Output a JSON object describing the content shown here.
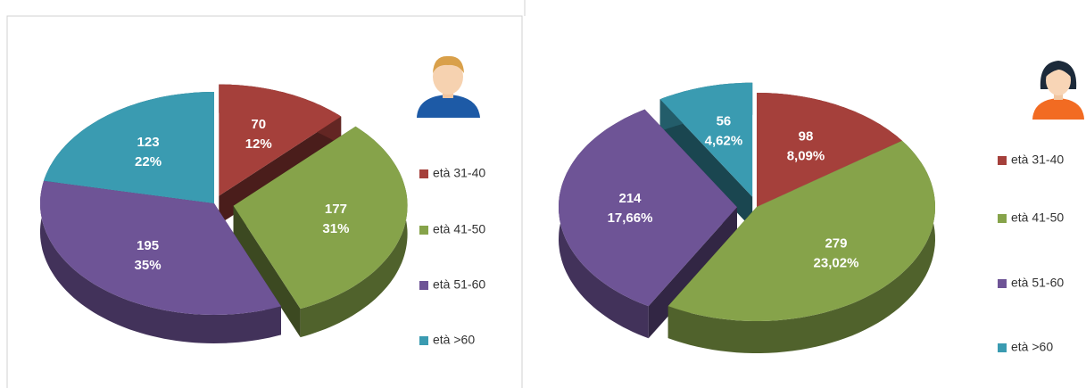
{
  "chart_data": [
    {
      "type": "pie3d",
      "categories": [
        "età 31-40",
        "età 41-50",
        "età 51-60",
        "età >60"
      ],
      "values": [
        70,
        177,
        195,
        123
      ],
      "percentage_labels": [
        "12%",
        "31%",
        "35%",
        "22%"
      ],
      "colors": [
        "#a5403b",
        "#86a34a",
        "#6e5496",
        "#3a9bb1"
      ],
      "legend": "right"
    },
    {
      "type": "pie3d",
      "categories": [
        "età 31-40",
        "età 41-50",
        "età 51-60",
        "età >60"
      ],
      "values": [
        98,
        279,
        214,
        56
      ],
      "percentage_labels": [
        "8,09%",
        "23,02%",
        "17,66%",
        "4,62%"
      ],
      "colors": [
        "#a5403b",
        "#86a34a",
        "#6e5496",
        "#3a9bb1"
      ],
      "legend": "right"
    }
  ]
}
